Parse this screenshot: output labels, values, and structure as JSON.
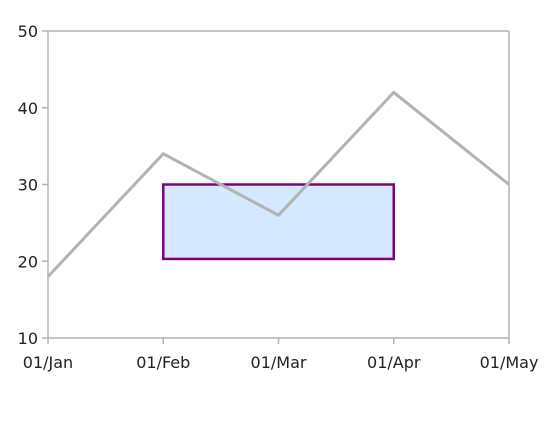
{
  "chart_data": {
    "type": "line",
    "title": "",
    "xlabel": "",
    "ylabel": "",
    "categories": [
      "01/Jan",
      "01/Feb",
      "01/Mar",
      "01/Apr",
      "01/May"
    ],
    "series": [
      {
        "values": [
          18,
          34,
          26,
          42,
          30
        ],
        "color": "#b3b3b3"
      }
    ],
    "ylim": [
      10,
      50
    ],
    "yticks": [
      10,
      20,
      30,
      40,
      50
    ],
    "grid": false,
    "legend": "none",
    "annotation": {
      "type": "rectangle",
      "x_start": "01/Feb",
      "x_end": "01/Apr",
      "y_start": 20.3,
      "y_end": 30,
      "fill": "#d4e8ff",
      "stroke": "#800080"
    },
    "axis_color": "#b3b3b3"
  }
}
